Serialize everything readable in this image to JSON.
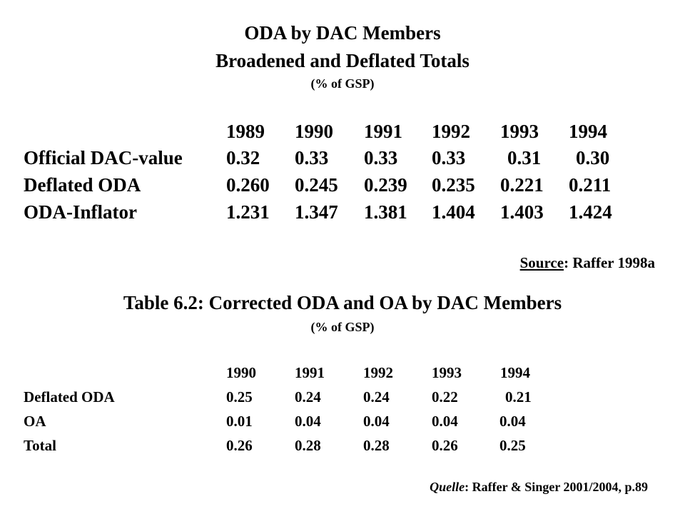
{
  "table1": {
    "title": "ODA by DAC Members",
    "subtitle": "Broadened and Deflated Totals",
    "unit": "(% of GSP)",
    "years": [
      "1989",
      "1990",
      "1991",
      "1992",
      "1993",
      "1994"
    ],
    "rows": [
      {
        "label": "Official DAC-value",
        "values": [
          "0.32",
          "0.33",
          "0.33",
          "0.33",
          "0.31",
          "0.30"
        ]
      },
      {
        "label": "Deflated ODA",
        "values": [
          "0.260",
          "0.245",
          "0.239",
          "0.235",
          "0.221",
          "0.211"
        ]
      },
      {
        "label": "ODA-Inflator",
        "values": [
          "1.231",
          "1.347",
          "1.381",
          "1.404",
          "1.403",
          "1.424"
        ]
      }
    ],
    "source_label": "Source",
    "source_text": ": Raffer 1998a"
  },
  "table2": {
    "title": "Table 6.2: Corrected ODA and OA by DAC Members",
    "unit": "(% of GSP)",
    "years": [
      "1990",
      "1991",
      "1992",
      "1993",
      "1994"
    ],
    "rows": [
      {
        "label": "Deflated ODA",
        "values": [
          "0.25",
          "0.24",
          "0.24",
          "0.22",
          "0.21"
        ]
      },
      {
        "label": "OA",
        "values": [
          "0.01",
          "0.04",
          "0.04",
          "0.04",
          "0.04"
        ]
      },
      {
        "label": "Total",
        "values": [
          "0.26",
          "0.28",
          "0.28",
          "0.26",
          "0.25"
        ]
      }
    ],
    "source_label": "Quelle",
    "source_text": ": Raffer & Singer 2001/2004, p.89"
  }
}
